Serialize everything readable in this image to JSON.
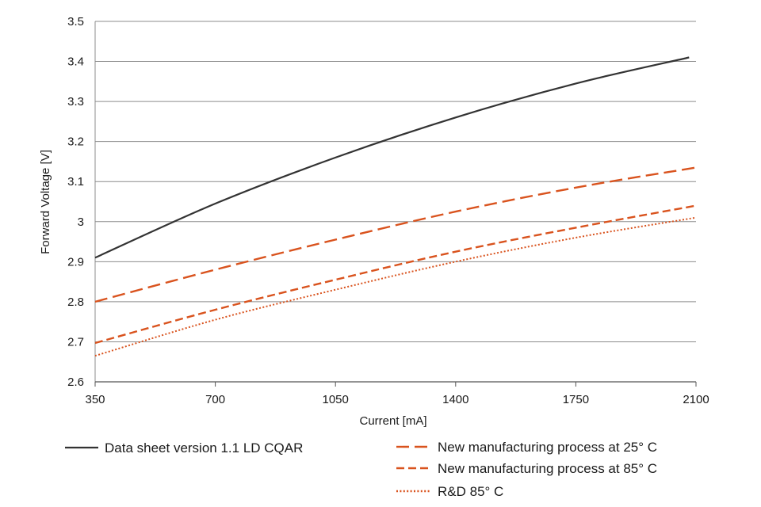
{
  "chart_data": {
    "type": "line",
    "xlabel": "Current [mA]",
    "ylabel": "Forward Voltage [V]",
    "xlim": [
      350,
      2100
    ],
    "ylim": [
      2.6,
      3.5
    ],
    "xticks": [
      350,
      700,
      1050,
      1400,
      1750,
      2100
    ],
    "yticks": [
      2.6,
      2.7,
      2.8,
      2.9,
      3,
      3.1,
      3.2,
      3.3,
      3.4,
      3.5
    ],
    "grid": "horizontal",
    "legend_position": "bottom",
    "x": [
      350,
      700,
      1050,
      1400,
      1750,
      2100
    ],
    "series": [
      {
        "name": "Data sheet version 1.1 LD CQAR",
        "color": "#333333",
        "style": "solid",
        "x": [
          350,
          700,
          1050,
          1400,
          1750,
          2080
        ],
        "values": [
          2.91,
          3.045,
          3.16,
          3.26,
          3.345,
          3.41
        ]
      },
      {
        "name": "New manufacturing process at 25° C",
        "color": "#d9531e",
        "style": "dashed-long",
        "values": [
          2.8,
          2.88,
          2.955,
          3.025,
          3.085,
          3.135
        ]
      },
      {
        "name": "New manufacturing process at 85° C",
        "color": "#d9531e",
        "style": "dashed-short",
        "values": [
          2.697,
          2.78,
          2.855,
          2.925,
          2.985,
          3.04
        ]
      },
      {
        "name": "R&D 85° C",
        "color": "#d9531e",
        "style": "dotted",
        "values": [
          2.665,
          2.755,
          2.83,
          2.9,
          2.96,
          3.01
        ]
      }
    ]
  }
}
